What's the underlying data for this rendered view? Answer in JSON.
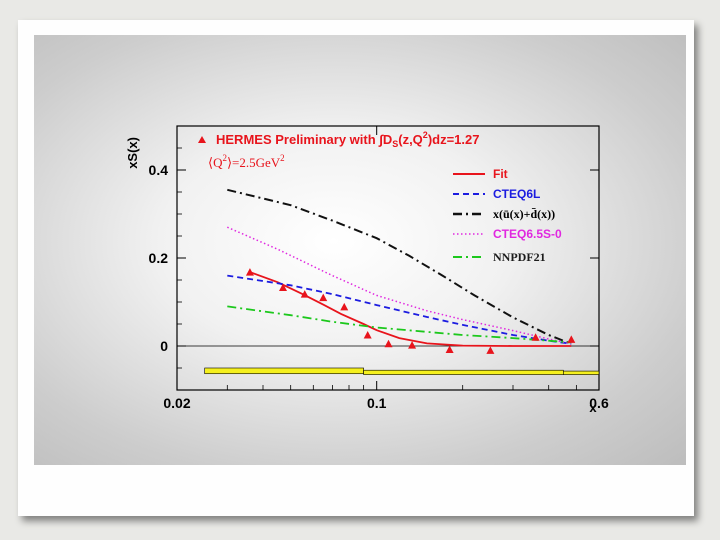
{
  "chart_data": {
    "type": "scatter",
    "title": "HERMES Preliminary with ∫D_S(z,Q²)dz=1.27",
    "title_main": "HERMES Preliminary with ∫D",
    "title_sub": "S",
    "title_end": "(z,Q",
    "title_sup": "2",
    "title_tail": ")dz=1.27",
    "subtitle": "⟨Q²⟩=2.5GeV²",
    "subtitle_main": "⟨Q",
    "subtitle_sup1": "2",
    "subtitle_mid": "⟩=2.5GeV",
    "subtitle_sup2": "2",
    "xlabel": "x",
    "ylabel": "xS(x)",
    "xscale": "log",
    "xlim": [
      0.02,
      0.6
    ],
    "ylim": [
      -0.1,
      0.5
    ],
    "xticks": [
      {
        "value": 0.02,
        "label": "0.02"
      },
      {
        "value": 0.1,
        "label": "0.1"
      },
      {
        "value": 0.6,
        "label": "0.6"
      }
    ],
    "yticks": [
      {
        "value": 0,
        "label": "0"
      },
      {
        "value": 0.2,
        "label": "0.2"
      },
      {
        "value": 0.4,
        "label": "0.4"
      }
    ],
    "series": [
      {
        "name": "HERMES data",
        "kind": "points",
        "color": "#e8141c",
        "x": [
          0.036,
          0.047,
          0.056,
          0.065,
          0.077,
          0.093,
          0.11,
          0.133,
          0.18,
          0.25,
          0.36,
          0.48
        ],
        "y": [
          0.168,
          0.133,
          0.118,
          0.11,
          0.089,
          0.025,
          0.005,
          0.002,
          -0.008,
          -0.01,
          0.02,
          0.015
        ]
      },
      {
        "name": "Fit",
        "kind": "line",
        "dash": "solid",
        "color": "#e8141c",
        "x": [
          0.036,
          0.045,
          0.055,
          0.065,
          0.075,
          0.09,
          0.1,
          0.12,
          0.15,
          0.2,
          0.3,
          0.48
        ],
        "y": [
          0.168,
          0.145,
          0.118,
          0.094,
          0.073,
          0.05,
          0.036,
          0.018,
          0.006,
          0.001,
          0.0,
          0.0
        ]
      },
      {
        "name": "CTEQ6L",
        "kind": "line",
        "dash": "dashed",
        "color": "#1c1ce0",
        "x": [
          0.03,
          0.05,
          0.07,
          0.1,
          0.15,
          0.2,
          0.3,
          0.4,
          0.48
        ],
        "y": [
          0.16,
          0.138,
          0.118,
          0.093,
          0.066,
          0.048,
          0.025,
          0.012,
          0.005
        ]
      },
      {
        "name": "x(ū(x)+d̄(x))",
        "kind": "line",
        "dash": "dashdot",
        "color": "#111111",
        "x": [
          0.03,
          0.05,
          0.07,
          0.1,
          0.13,
          0.17,
          0.22,
          0.3,
          0.4,
          0.48
        ],
        "y": [
          0.355,
          0.32,
          0.285,
          0.245,
          0.205,
          0.16,
          0.115,
          0.065,
          0.025,
          0.005
        ]
      },
      {
        "name": "CTEQ6.5S-0",
        "kind": "line",
        "dash": "dotted",
        "color": "#e028e0",
        "x": [
          0.03,
          0.045,
          0.07,
          0.1,
          0.15,
          0.2,
          0.3,
          0.4,
          0.48
        ],
        "y": [
          0.27,
          0.22,
          0.16,
          0.115,
          0.08,
          0.06,
          0.035,
          0.016,
          0.005
        ]
      },
      {
        "name": "NNPDF21",
        "kind": "line",
        "dash": "dashdot",
        "color": "#1cc81c",
        "x": [
          0.03,
          0.05,
          0.07,
          0.1,
          0.15,
          0.2,
          0.3,
          0.4,
          0.48
        ],
        "y": [
          0.09,
          0.07,
          0.055,
          0.042,
          0.032,
          0.025,
          0.018,
          0.012,
          0.008
        ]
      }
    ],
    "legend": {
      "placement": "top-right",
      "items": [
        {
          "label": "Fit",
          "color": "#e8141c",
          "dash": "solid"
        },
        {
          "label": "CTEQ6L",
          "color": "#1c1ce0",
          "dash": "dashed"
        },
        {
          "label": "x(ū(x)+d̄(x))",
          "color": "#111111",
          "dash": "dashdot"
        },
        {
          "label": "CTEQ6.5S-0",
          "color": "#e028e0",
          "dash": "dotted"
        },
        {
          "label": "NNPDF21",
          "color": "#1cc81c",
          "dash": "dashdot"
        }
      ]
    },
    "systematic_band": {
      "x_start": 0.025,
      "x_end": 0.6,
      "segments": [
        {
          "x0": 0.025,
          "x1": 0.09,
          "ylo": -0.063,
          "yhi": -0.05
        },
        {
          "x0": 0.09,
          "x1": 0.45,
          "ylo": -0.065,
          "yhi": -0.055
        },
        {
          "x0": 0.45,
          "x1": 0.6,
          "ylo": -0.065,
          "yhi": -0.057
        }
      ],
      "color": "#f5f01e"
    }
  }
}
